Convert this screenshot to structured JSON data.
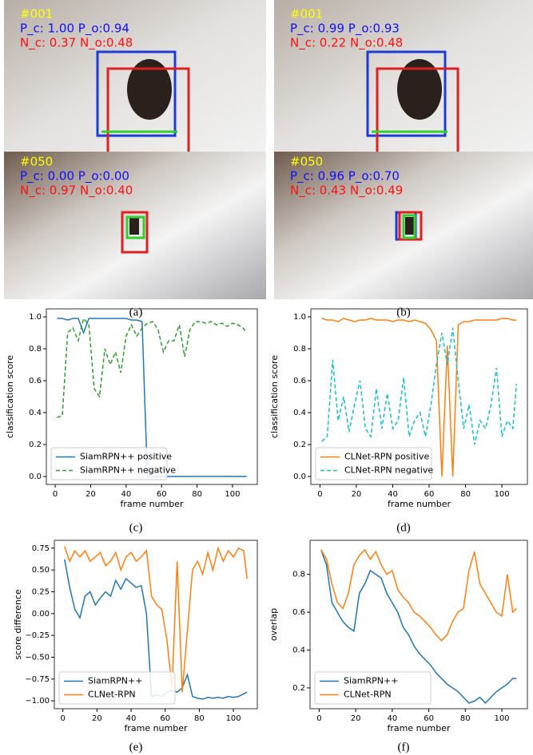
{
  "photos": [
    {
      "rows": [
        {
          "frame": "#001",
          "pos": "P_c: 1.00  P_o:0.94",
          "neg": "N_c: 0.37  N_o:0.48"
        },
        {
          "frame": "#050",
          "pos": "P_c: 0.00  P_o:0.00",
          "neg": "N_c: 0.97  N_o:0.40"
        }
      ]
    },
    {
      "rows": [
        {
          "frame": "#001",
          "pos": "P_c: 0.99  P_o:0.93",
          "neg": "N_c: 0.22  N_o:0.48"
        },
        {
          "frame": "#050",
          "pos": "P_c: 0.96  P_o:0.70",
          "neg": "N_c: 0.43  N_o:0.49"
        }
      ]
    }
  ],
  "captions": [
    "(a)",
    "(b)",
    "(c)",
    "(d)",
    "(e)",
    "(f)"
  ],
  "chart_data": [
    {
      "type": "line",
      "xlabel": "frame number",
      "ylabel": "classification score",
      "legend": "lower left",
      "x": [
        1,
        4,
        7,
        10,
        13,
        16,
        19,
        22,
        25,
        28,
        31,
        34,
        37,
        40,
        43,
        46,
        49,
        52,
        55,
        58,
        61,
        64,
        67,
        70,
        73,
        76,
        79,
        82,
        85,
        88,
        91,
        94,
        97,
        100,
        103,
        106,
        108
      ],
      "xlim": [
        -5,
        114
      ],
      "xticks": [
        0,
        20,
        40,
        60,
        80,
        100
      ],
      "ylim": [
        -0.05,
        1.05
      ],
      "yticks": [
        {
          "value": 0,
          "label": "0.0"
        },
        0.2,
        0.4,
        0.6,
        0.8,
        {
          "value": 1,
          "label": "1.0"
        }
      ],
      "series": [
        {
          "name": "SiamRPN++ positive",
          "color": "#1f77b4",
          "dashed": false,
          "values": [
            0.99,
            0.99,
            0.98,
            0.99,
            0.99,
            0.9,
            0.99,
            0.99,
            0.99,
            0.99,
            0.99,
            0.99,
            0.99,
            0.99,
            0.98,
            0.98,
            0.97,
            0,
            0,
            0,
            0,
            0,
            0,
            0,
            0,
            0,
            0,
            0,
            0,
            0,
            0,
            0,
            0,
            0,
            0,
            0,
            0
          ]
        },
        {
          "name": "SiamRPN++ negative",
          "color": "#2ca02c",
          "dashed": true,
          "values": [
            0.37,
            0.38,
            0.9,
            0.93,
            0.85,
            0.99,
            0.95,
            0.55,
            0.5,
            0.8,
            0.7,
            0.78,
            0.65,
            0.88,
            0.95,
            0.88,
            0.93,
            0.96,
            0.97,
            0.92,
            0.78,
            0.85,
            0.85,
            0.95,
            0.75,
            0.92,
            0.97,
            0.97,
            0.96,
            0.97,
            0.95,
            0.96,
            0.94,
            0.96,
            0.95,
            0.93,
            0.9
          ]
        }
      ]
    },
    {
      "type": "line",
      "xlabel": "frame number",
      "ylabel": "classification score",
      "legend": "lower left",
      "x": [
        1,
        4,
        7,
        10,
        13,
        16,
        19,
        22,
        25,
        28,
        31,
        34,
        37,
        40,
        43,
        46,
        49,
        52,
        55,
        58,
        61,
        64,
        67,
        70,
        73,
        76,
        79,
        82,
        85,
        88,
        91,
        94,
        97,
        100,
        103,
        106,
        108
      ],
      "xlim": [
        -5,
        114
      ],
      "xticks": [
        0,
        20,
        40,
        60,
        80,
        100
      ],
      "ylim": [
        -0.05,
        1.05
      ],
      "yticks": [
        {
          "value": 0,
          "label": "0.0"
        },
        0.2,
        0.4,
        0.6,
        0.8,
        {
          "value": 1,
          "label": "1.0"
        }
      ],
      "series": [
        {
          "name": "CLNet-RPN positive",
          "color": "#ff7f0e",
          "dashed": false,
          "values": [
            0.99,
            0.98,
            0.98,
            0.97,
            0.99,
            0.98,
            0.97,
            0.98,
            0.98,
            0.99,
            0.98,
            0.98,
            0.98,
            0.97,
            0.98,
            0.98,
            0.97,
            0.98,
            0.97,
            0.96,
            0.92,
            0.85,
            0,
            0.82,
            0,
            0.95,
            0.97,
            0.97,
            0.98,
            0.98,
            0.98,
            0.98,
            0.98,
            0.99,
            0.99,
            0.98,
            0.98
          ]
        },
        {
          "name": "CLNet-RPN negative",
          "color": "#17becf",
          "dashed": true,
          "values": [
            0.22,
            0.25,
            0.73,
            0.35,
            0.5,
            0.28,
            0.45,
            0.6,
            0.3,
            0.25,
            0.55,
            0.3,
            0.52,
            0.3,
            0.35,
            0.62,
            0.25,
            0.35,
            0.4,
            0.25,
            0.45,
            0.7,
            0.9,
            0.7,
            0.93,
            0.6,
            0.3,
            0.45,
            0.2,
            0.35,
            0.3,
            0.45,
            0.68,
            0.25,
            0.35,
            0.3,
            0.58
          ]
        }
      ]
    },
    {
      "type": "line",
      "xlabel": "frame number",
      "ylabel": "score difference",
      "legend": "lower left",
      "x": [
        1,
        4,
        7,
        10,
        13,
        16,
        19,
        22,
        25,
        28,
        31,
        34,
        37,
        40,
        43,
        46,
        49,
        52,
        55,
        58,
        61,
        64,
        67,
        70,
        73,
        76,
        79,
        82,
        85,
        88,
        91,
        94,
        97,
        100,
        103,
        106,
        108
      ],
      "xlim": [
        -5,
        114
      ],
      "xticks": [
        0,
        20,
        40,
        60,
        80,
        100
      ],
      "ylim": [
        -1.09,
        0.84
      ],
      "yticks": [
        {
          "value": -1,
          "label": "−1.00"
        },
        {
          "value": -0.75,
          "label": "−0.75"
        },
        {
          "value": -0.5,
          "label": "−0.50"
        },
        {
          "value": -0.25,
          "label": "−0.25"
        },
        {
          "value": 0,
          "label": "0.00"
        },
        {
          "value": 0.25,
          "label": "0.25"
        },
        {
          "value": 0.5,
          "label": "0.50"
        },
        {
          "value": 0.75,
          "label": "0.75"
        }
      ],
      "series": [
        {
          "name": "SiamRPN++",
          "color": "#1f77b4",
          "dashed": false,
          "values": [
            0.62,
            0.3,
            0.05,
            -0.05,
            0.2,
            0.25,
            0.1,
            0.18,
            0.25,
            0.2,
            0.38,
            0.28,
            0.4,
            0.35,
            0.3,
            0.32,
            0,
            -0.95,
            -0.93,
            -0.95,
            -0.9,
            -0.88,
            -0.9,
            -0.85,
            -0.7,
            -0.95,
            -0.97,
            -0.98,
            -0.96,
            -0.97,
            -0.96,
            -0.97,
            -0.95,
            -0.96,
            -0.95,
            -0.92,
            -0.9
          ]
        },
        {
          "name": "CLNet-RPN",
          "color": "#ff7f0e",
          "dashed": false,
          "values": [
            0.77,
            0.6,
            0.72,
            0.65,
            0.72,
            0.6,
            0.65,
            0.7,
            0.55,
            0.6,
            0.7,
            0.5,
            0.65,
            0.7,
            0.6,
            0.65,
            0.72,
            0.2,
            0.1,
            0.05,
            -0.3,
            -0.85,
            0.6,
            -0.9,
            -0.2,
            0.5,
            0.6,
            0.45,
            0.7,
            0.5,
            0.75,
            0.6,
            0.72,
            0.65,
            0.75,
            0.72,
            0.4
          ]
        }
      ]
    },
    {
      "type": "line",
      "xlabel": "frame number",
      "ylabel": "overlap",
      "legend": "lower left",
      "x": [
        1,
        4,
        7,
        10,
        13,
        16,
        19,
        22,
        25,
        28,
        31,
        34,
        37,
        40,
        43,
        46,
        49,
        52,
        55,
        58,
        61,
        64,
        67,
        70,
        73,
        76,
        79,
        82,
        85,
        88,
        91,
        94,
        97,
        100,
        103,
        106,
        108
      ],
      "xlim": [
        -5,
        114
      ],
      "xticks": [
        0,
        20,
        40,
        60,
        80,
        100
      ],
      "ylim": [
        0.09,
        0.98
      ],
      "yticks": [
        0.2,
        0.4,
        0.6,
        0.8
      ],
      "series": [
        {
          "name": "SiamRPN++",
          "color": "#1f77b4",
          "dashed": false,
          "values": [
            0.93,
            0.85,
            0.65,
            0.6,
            0.55,
            0.52,
            0.5,
            0.7,
            0.75,
            0.82,
            0.8,
            0.78,
            0.7,
            0.65,
            0.6,
            0.52,
            0.48,
            0.42,
            0.38,
            0.35,
            0.32,
            0.28,
            0.25,
            0.22,
            0.2,
            0.18,
            0.15,
            0.12,
            0.13,
            0.15,
            0.12,
            0.15,
            0.18,
            0.2,
            0.22,
            0.25,
            0.25
          ]
        },
        {
          "name": "CLNet-RPN",
          "color": "#ff7f0e",
          "dashed": false,
          "values": [
            0.93,
            0.88,
            0.75,
            0.65,
            0.62,
            0.7,
            0.85,
            0.9,
            0.93,
            0.88,
            0.92,
            0.85,
            0.8,
            0.82,
            0.72,
            0.68,
            0.65,
            0.6,
            0.58,
            0.55,
            0.52,
            0.48,
            0.45,
            0.48,
            0.55,
            0.6,
            0.62,
            0.82,
            0.92,
            0.75,
            0.7,
            0.65,
            0.6,
            0.58,
            0.8,
            0.6,
            0.62
          ]
        }
      ]
    }
  ]
}
